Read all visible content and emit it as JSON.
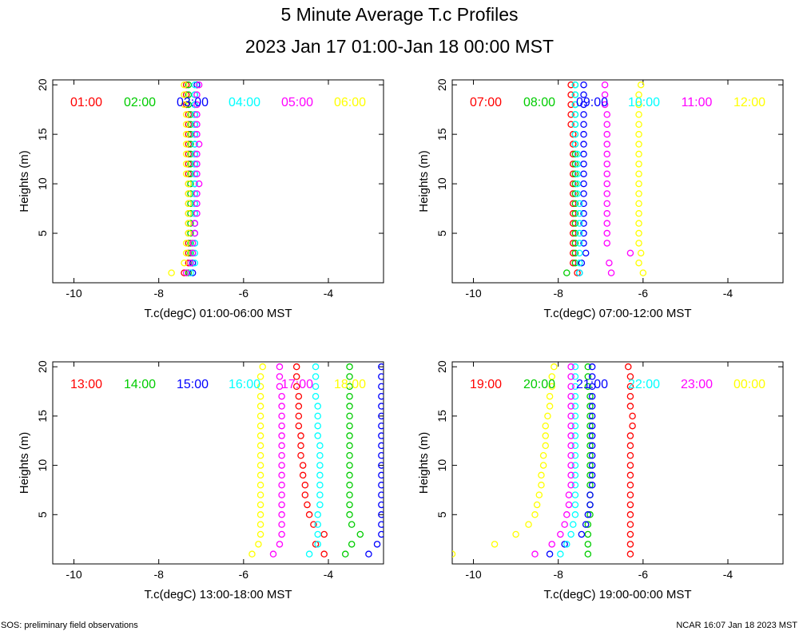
{
  "title": "5 Minute Average T.c Profiles",
  "subtitle": "2023 Jan 17 01:00-Jan 18 00:00 MST",
  "footer_left": "SOS: preliminary field observations",
  "footer_right": "NCAR 16:07 Jan 18 2023 MST",
  "colors": [
    "#ff0000",
    "#00cc00",
    "#0000ff",
    "#00ffff",
    "#ff00ff",
    "#ffff00"
  ],
  "chart_data": [
    {
      "type": "scatter",
      "xlabel": "T.c(degC) 01:00-06:00 MST",
      "ylabel": "Heights (m)",
      "xlim": [
        -10.5,
        -2.7
      ],
      "ylim": [
        0,
        20.5
      ],
      "xticks": [
        -10,
        -8,
        -6,
        -4
      ],
      "yticks": [
        5,
        10,
        15,
        20
      ],
      "heights": [
        1,
        2,
        3,
        4,
        5,
        6,
        7,
        8,
        9,
        10,
        11,
        12,
        13,
        14,
        15,
        16,
        17,
        18,
        19,
        20
      ],
      "series": [
        {
          "name": "01:00",
          "values": [
            -7.4,
            -7.3,
            -7.3,
            -7.3,
            -7.3,
            -7.3,
            -7.3,
            -7.3,
            -7.3,
            -7.3,
            -7.3,
            -7.3,
            -7.3,
            -7.3,
            -7.3,
            -7.3,
            -7.3,
            -7.35,
            -7.35,
            -7.35
          ]
        },
        {
          "name": "02:00",
          "values": [
            -7.3,
            -7.25,
            -7.25,
            -7.25,
            -7.25,
            -7.25,
            -7.25,
            -7.25,
            -7.25,
            -7.25,
            -7.25,
            -7.25,
            -7.25,
            -7.25,
            -7.25,
            -7.25,
            -7.25,
            -7.3,
            -7.3,
            -7.3
          ]
        },
        {
          "name": "03:00",
          "values": [
            -7.2,
            -7.2,
            -7.2,
            -7.15,
            -7.15,
            -7.15,
            -7.15,
            -7.15,
            -7.15,
            -7.15,
            -7.15,
            -7.15,
            -7.15,
            -7.15,
            -7.15,
            -7.15,
            -7.15,
            -7.15,
            -7.15,
            -7.1
          ]
        },
        {
          "name": "04:00",
          "values": [
            -7.25,
            -7.15,
            -7.15,
            -7.15,
            -7.15,
            -7.15,
            -7.15,
            -7.15,
            -7.15,
            -7.15,
            -7.15,
            -7.15,
            -7.15,
            -7.15,
            -7.15,
            -7.15,
            -7.15,
            -7.15,
            -7.15,
            -7.15
          ]
        },
        {
          "name": "05:00",
          "values": [
            -7.35,
            -7.25,
            -7.2,
            -7.2,
            -7.15,
            -7.15,
            -7.1,
            -7.1,
            -7.1,
            -7.05,
            -7.1,
            -7.1,
            -7.1,
            -7.05,
            -7.1,
            -7.1,
            -7.1,
            -7.1,
            -7.1,
            -7.05
          ]
        },
        {
          "name": "06:00",
          "values": [
            -7.7,
            -7.4,
            -7.35,
            -7.35,
            -7.3,
            -7.3,
            -7.3,
            -7.3,
            -7.3,
            -7.3,
            -7.35,
            -7.35,
            -7.35,
            -7.35,
            -7.35,
            -7.35,
            -7.35,
            -7.4,
            -7.4,
            -7.4
          ]
        }
      ],
      "legend": [
        "01:00",
        "02:00",
        "03:00",
        "04:00",
        "05:00",
        "06:00"
      ]
    },
    {
      "type": "scatter",
      "xlabel": "T.c(degC) 07:00-12:00 MST",
      "ylabel": "Heights (m)",
      "xlim": [
        -10.5,
        -2.7
      ],
      "ylim": [
        0,
        20.5
      ],
      "xticks": [
        -10,
        -8,
        -6,
        -4
      ],
      "yticks": [
        5,
        10,
        15,
        20
      ],
      "heights": [
        1,
        2,
        3,
        4,
        5,
        6,
        7,
        8,
        9,
        10,
        11,
        12,
        13,
        14,
        15,
        16,
        17,
        18,
        19,
        20
      ],
      "series": [
        {
          "name": "07:00",
          "values": [
            -7.55,
            -7.65,
            -7.65,
            -7.65,
            -7.65,
            -7.65,
            -7.65,
            -7.65,
            -7.65,
            -7.65,
            -7.65,
            -7.65,
            -7.65,
            -7.65,
            -7.65,
            -7.7,
            -7.7,
            -7.7,
            -7.7,
            -7.7
          ]
        },
        {
          "name": "08:00",
          "values": [
            -7.8,
            -7.6,
            -7.6,
            -7.6,
            -7.6,
            -7.6,
            -7.6,
            -7.6,
            -7.6,
            -7.6,
            -7.6,
            -7.6,
            -7.6,
            -7.6,
            -7.6,
            -7.6,
            -7.6,
            -7.6,
            -7.6,
            -7.6
          ]
        },
        {
          "name": "09:00",
          "values": [
            -7.5,
            -7.45,
            -7.35,
            -7.4,
            -7.4,
            -7.4,
            -7.4,
            -7.4,
            -7.4,
            -7.4,
            -7.4,
            -7.4,
            -7.4,
            -7.4,
            -7.4,
            -7.4,
            -7.4,
            -7.4,
            -7.4,
            -7.4
          ]
        },
        {
          "name": "10:00",
          "values": [
            -7.5,
            -7.5,
            -7.5,
            -7.5,
            -7.5,
            -7.5,
            -7.5,
            -7.5,
            -7.55,
            -7.55,
            -7.55,
            -7.55,
            -7.55,
            -7.6,
            -7.6,
            -7.6,
            -7.6,
            -7.6,
            -7.6,
            -7.6
          ]
        },
        {
          "name": "11:00",
          "values": [
            -6.75,
            -6.8,
            -6.3,
            -6.85,
            -6.85,
            -6.85,
            -6.85,
            -6.85,
            -6.85,
            -6.85,
            -6.85,
            -6.85,
            -6.85,
            -6.85,
            -6.85,
            -6.85,
            -6.85,
            -6.9,
            -6.9,
            -6.9
          ]
        },
        {
          "name": "12:00",
          "values": [
            -6.0,
            -6.1,
            -6.05,
            -6.1,
            -6.1,
            -6.1,
            -6.1,
            -6.1,
            -6.1,
            -6.1,
            -6.1,
            -6.1,
            -6.1,
            -6.1,
            -6.1,
            -6.1,
            -6.1,
            -6.1,
            -6.1,
            -6.05
          ]
        }
      ],
      "legend": [
        "07:00",
        "08:00",
        "09:00",
        "10:00",
        "11:00",
        "12:00"
      ]
    },
    {
      "type": "scatter",
      "xlabel": "T.c(degC) 13:00-18:00 MST",
      "ylabel": "Heights (m)",
      "xlim": [
        -10.5,
        -2.7
      ],
      "ylim": [
        0,
        20.5
      ],
      "xticks": [
        -10,
        -8,
        -6,
        -4
      ],
      "yticks": [
        5,
        10,
        15,
        20
      ],
      "heights": [
        1,
        2,
        3,
        4,
        5,
        6,
        7,
        8,
        9,
        10,
        11,
        12,
        13,
        14,
        15,
        16,
        17,
        18,
        19,
        20
      ],
      "series": [
        {
          "name": "13:00",
          "values": [
            -4.1,
            -4.3,
            -4.1,
            -4.35,
            -4.45,
            -4.5,
            -4.55,
            -4.55,
            -4.6,
            -4.6,
            -4.65,
            -4.65,
            -4.65,
            -4.7,
            -4.7,
            -4.7,
            -4.7,
            -4.75,
            -4.75,
            -4.75
          ]
        },
        {
          "name": "14:00",
          "values": [
            -3.6,
            -3.45,
            -3.25,
            -3.45,
            -3.5,
            -3.5,
            -3.5,
            -3.5,
            -3.5,
            -3.5,
            -3.5,
            -3.5,
            -3.5,
            -3.5,
            -3.5,
            -3.5,
            -3.5,
            -3.5,
            -3.5,
            -3.5
          ]
        },
        {
          "name": "15:00",
          "values": [
            -3.05,
            -2.85,
            -2.75,
            -2.75,
            -2.75,
            -2.75,
            -2.75,
            -2.75,
            -2.75,
            -2.75,
            -2.75,
            -2.75,
            -2.75,
            -2.75,
            -2.75,
            -2.75,
            -2.75,
            -2.75,
            -2.75,
            -2.75
          ]
        },
        {
          "name": "16:00",
          "values": [
            -4.45,
            -4.25,
            -4.25,
            -4.25,
            -4.25,
            -4.2,
            -4.2,
            -4.2,
            -4.2,
            -4.2,
            -4.2,
            -4.2,
            -4.25,
            -4.25,
            -4.25,
            -4.25,
            -4.3,
            -4.3,
            -4.3,
            -4.3
          ]
        },
        {
          "name": "17:00",
          "values": [
            -5.3,
            -5.15,
            -5.1,
            -5.1,
            -5.1,
            -5.1,
            -5.1,
            -5.1,
            -5.1,
            -5.1,
            -5.1,
            -5.1,
            -5.1,
            -5.1,
            -5.1,
            -5.1,
            -5.1,
            -5.15,
            -5.15,
            -5.15
          ]
        },
        {
          "name": "18:00",
          "values": [
            -5.8,
            -5.65,
            -5.6,
            -5.6,
            -5.6,
            -5.6,
            -5.6,
            -5.6,
            -5.6,
            -5.6,
            -5.6,
            -5.6,
            -5.6,
            -5.6,
            -5.6,
            -5.6,
            -5.6,
            -5.6,
            -5.6,
            -5.55
          ]
        }
      ],
      "legend": [
        "13:00",
        "14:00",
        "15:00",
        "16:00",
        "17:00",
        "18:00"
      ]
    },
    {
      "type": "scatter",
      "xlabel": "T.c(degC) 19:00-00:00 MST",
      "ylabel": "Heights (m)",
      "xlim": [
        -10.5,
        -2.7
      ],
      "ylim": [
        0,
        20.5
      ],
      "xticks": [
        -10,
        -8,
        -6,
        -4
      ],
      "yticks": [
        5,
        10,
        15,
        20
      ],
      "heights": [
        1,
        2,
        3,
        4,
        5,
        6,
        7,
        8,
        9,
        10,
        11,
        12,
        13,
        14,
        15,
        16,
        17,
        18,
        19,
        20
      ],
      "series": [
        {
          "name": "19:00",
          "values": [
            -6.3,
            -6.3,
            -6.3,
            -6.3,
            -6.3,
            -6.3,
            -6.3,
            -6.3,
            -6.3,
            -6.3,
            -6.3,
            -6.3,
            -6.3,
            -6.25,
            -6.25,
            -6.3,
            -6.3,
            -6.3,
            -6.3,
            -6.35
          ]
        },
        {
          "name": "20:00",
          "values": [
            -7.3,
            -7.3,
            -7.3,
            -7.3,
            -7.25,
            -7.25,
            -7.25,
            -7.25,
            -7.25,
            -7.25,
            -7.25,
            -7.25,
            -7.25,
            -7.25,
            -7.25,
            -7.25,
            -7.25,
            -7.3,
            -7.3,
            -7.3
          ]
        },
        {
          "name": "21:00",
          "values": [
            -8.2,
            -7.85,
            -7.45,
            -7.35,
            -7.3,
            -7.25,
            -7.25,
            -7.2,
            -7.2,
            -7.2,
            -7.2,
            -7.2,
            -7.2,
            -7.2,
            -7.2,
            -7.2,
            -7.2,
            -7.2,
            -7.2,
            -7.2
          ]
        },
        {
          "name": "22:00",
          "values": [
            -7.95,
            -7.8,
            -7.7,
            -7.65,
            -7.6,
            -7.6,
            -7.6,
            -7.6,
            -7.6,
            -7.6,
            -7.6,
            -7.6,
            -7.6,
            -7.6,
            -7.6,
            -7.6,
            -7.6,
            -7.6,
            -7.6,
            -7.6
          ]
        },
        {
          "name": "23:00",
          "values": [
            -8.55,
            -8.15,
            -7.95,
            -7.85,
            -7.8,
            -7.75,
            -7.75,
            -7.7,
            -7.7,
            -7.7,
            -7.7,
            -7.7,
            -7.7,
            -7.7,
            -7.7,
            -7.7,
            -7.7,
            -7.7,
            -7.7,
            -7.7
          ]
        },
        {
          "name": "00:00",
          "values": [
            -10.5,
            -9.5,
            -9.0,
            -8.7,
            -8.55,
            -8.5,
            -8.45,
            -8.4,
            -8.4,
            -8.35,
            -8.35,
            -8.3,
            -8.3,
            -8.3,
            -8.25,
            -8.2,
            -8.2,
            -8.15,
            -8.15,
            -8.1
          ]
        }
      ],
      "legend": [
        "19:00",
        "20:00",
        "21:00",
        "22:00",
        "23:00",
        "00:00"
      ]
    }
  ]
}
